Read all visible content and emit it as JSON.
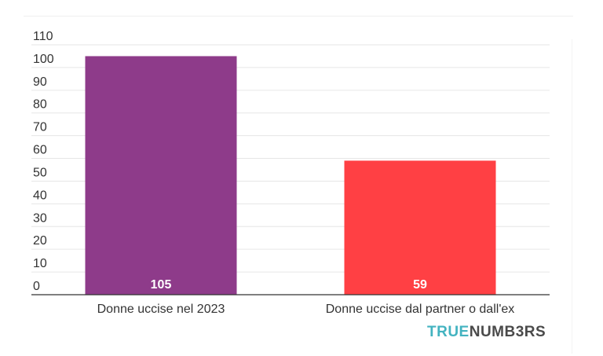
{
  "chart_data": {
    "type": "bar",
    "categories": [
      "Donne uccise nel 2023",
      "Donne uccise dal partner o dall'ex"
    ],
    "values": [
      105,
      59
    ],
    "data_labels": [
      "105",
      "59"
    ],
    "colors": [
      "#8e3b8a",
      "#ff4044"
    ],
    "yticks": [
      0,
      10,
      20,
      30,
      40,
      50,
      60,
      70,
      80,
      90,
      100,
      110
    ],
    "ylim": [
      0,
      110
    ],
    "grid": true,
    "title": "",
    "xlabel": "",
    "ylabel": ""
  },
  "brand": {
    "part1": "TRUE",
    "part2": "NUMB3RS"
  }
}
